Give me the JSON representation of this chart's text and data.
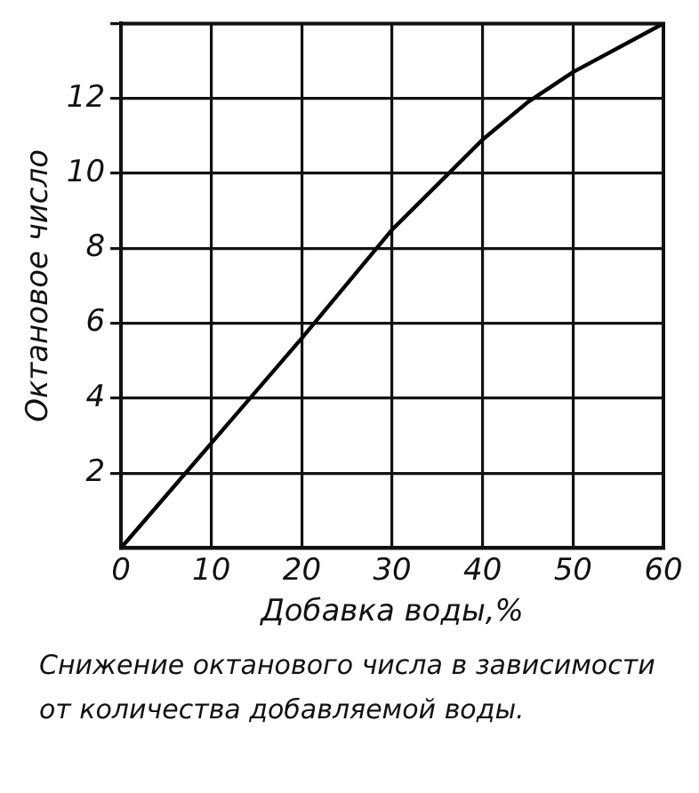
{
  "chart_data": {
    "type": "line",
    "xlabel": "Добавка воды,%",
    "ylabel": "Октановое число",
    "x": [
      0,
      10,
      20,
      30,
      40,
      45,
      50,
      60
    ],
    "series": [
      {
        "color": "#000000",
        "values": [
          0,
          2.8,
          5.6,
          8.5,
          10.9,
          11.9,
          12.7,
          14
        ]
      }
    ],
    "xlim": [
      0,
      60
    ],
    "xticks": [
      0,
      10,
      20,
      30,
      40,
      50,
      60
    ],
    "ylim": [
      0,
      14
    ],
    "yticks": [
      2,
      4,
      6,
      8,
      10,
      12,
      {
        "value": 14,
        "label": null
      }
    ],
    "grid": true,
    "legend": false,
    "marker": "none",
    "line_style": "solid",
    "annotations": [
      "Снижение октанового числа в зависимости от количества добавляемой воды."
    ]
  }
}
